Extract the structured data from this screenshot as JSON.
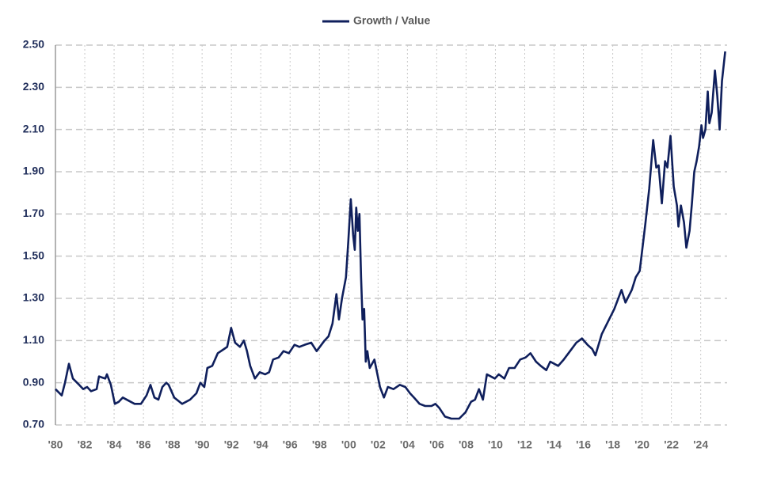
{
  "chart_data": {
    "type": "line",
    "legend": "top",
    "grid": true,
    "x": [
      1980.0,
      1980.43,
      1980.65,
      1980.92,
      1981.19,
      1981.62,
      1981.89,
      1982.16,
      1982.43,
      1982.81,
      1982.97,
      1983.4,
      1983.51,
      1983.78,
      1984.05,
      1984.32,
      1984.59,
      1985.13,
      1985.4,
      1985.83,
      1986.21,
      1986.48,
      1986.75,
      1987.02,
      1987.29,
      1987.56,
      1987.72,
      1988.1,
      1988.64,
      1989.18,
      1989.61,
      1989.88,
      1990.15,
      1990.36,
      1990.69,
      1991.07,
      1991.5,
      1991.71,
      1991.98,
      1992.25,
      1992.58,
      1992.85,
      1993.06,
      1993.28,
      1993.6,
      1993.93,
      1994.3,
      1994.57,
      1994.84,
      1995.22,
      1995.55,
      1995.92,
      1996.3,
      1996.63,
      1997.0,
      1997.44,
      1997.81,
      1998.35,
      1998.62,
      1998.89,
      1999.16,
      1999.33,
      1999.54,
      1999.81,
      1999.97,
      2000.14,
      2000.3,
      2000.41,
      2000.51,
      2000.62,
      2000.73,
      2000.84,
      2000.94,
      2001.05,
      2001.16,
      2001.27,
      2001.43,
      2001.75,
      2002.13,
      2002.4,
      2002.67,
      2003.05,
      2003.48,
      2003.86,
      2004.18,
      2004.45,
      2004.83,
      2005.21,
      2005.64,
      2005.91,
      2006.18,
      2006.56,
      2006.99,
      2007.53,
      2007.96,
      2008.34,
      2008.61,
      2008.88,
      2009.15,
      2009.42,
      2009.69,
      2009.96,
      2010.23,
      2010.61,
      2010.93,
      2011.31,
      2011.69,
      2012.06,
      2012.39,
      2012.77,
      2013.09,
      2013.47,
      2013.74,
      2014.28,
      2014.66,
      2015.09,
      2015.52,
      2015.9,
      2016.28,
      2016.6,
      2016.82,
      2017.25,
      2017.68,
      2018.11,
      2018.6,
      2018.87,
      2019.3,
      2019.57,
      2019.84,
      2020.22,
      2020.49,
      2020.76,
      2020.97,
      2021.13,
      2021.35,
      2021.57,
      2021.73,
      2021.94,
      2022.16,
      2022.38,
      2022.48,
      2022.65,
      2022.86,
      2023.02,
      2023.24,
      2023.4,
      2023.56,
      2023.72,
      2023.89,
      2024.05,
      2024.16,
      2024.32,
      2024.48,
      2024.59,
      2024.75,
      2024.97,
      2025.13,
      2025.29,
      2025.45,
      2025.67
    ],
    "series": [
      {
        "name": "Growth / Value",
        "color": "#0f1f5c",
        "values": [
          0.87,
          0.84,
          0.9,
          0.99,
          0.92,
          0.89,
          0.87,
          0.88,
          0.86,
          0.87,
          0.93,
          0.92,
          0.94,
          0.89,
          0.8,
          0.81,
          0.83,
          0.81,
          0.8,
          0.8,
          0.84,
          0.89,
          0.83,
          0.82,
          0.88,
          0.9,
          0.89,
          0.83,
          0.8,
          0.82,
          0.85,
          0.9,
          0.88,
          0.97,
          0.98,
          1.04,
          1.06,
          1.07,
          1.16,
          1.09,
          1.07,
          1.1,
          1.05,
          0.98,
          0.92,
          0.95,
          0.94,
          0.95,
          1.01,
          1.02,
          1.05,
          1.04,
          1.08,
          1.07,
          1.08,
          1.09,
          1.05,
          1.1,
          1.12,
          1.18,
          1.32,
          1.2,
          1.3,
          1.4,
          1.57,
          1.77,
          1.6,
          1.53,
          1.73,
          1.62,
          1.7,
          1.4,
          1.2,
          1.25,
          1.0,
          1.05,
          0.97,
          1.01,
          0.88,
          0.83,
          0.88,
          0.87,
          0.89,
          0.88,
          0.85,
          0.83,
          0.8,
          0.79,
          0.79,
          0.8,
          0.78,
          0.74,
          0.73,
          0.73,
          0.76,
          0.81,
          0.82,
          0.87,
          0.82,
          0.94,
          0.93,
          0.92,
          0.94,
          0.92,
          0.97,
          0.97,
          1.01,
          1.02,
          1.04,
          1.0,
          0.98,
          0.96,
          1.0,
          0.98,
          1.01,
          1.05,
          1.09,
          1.11,
          1.08,
          1.06,
          1.03,
          1.13,
          1.19,
          1.25,
          1.34,
          1.28,
          1.34,
          1.4,
          1.43,
          1.65,
          1.82,
          2.05,
          1.92,
          1.93,
          1.75,
          1.95,
          1.92,
          2.07,
          1.83,
          1.74,
          1.64,
          1.74,
          1.66,
          1.54,
          1.62,
          1.75,
          1.9,
          1.95,
          2.02,
          2.12,
          2.06,
          2.1,
          2.28,
          2.13,
          2.18,
          2.38,
          2.26,
          2.1,
          2.33,
          2.47
        ]
      }
    ],
    "xlim": [
      1980,
      2025.8
    ],
    "xticks": [
      {
        "value": 1980,
        "label": "'80"
      },
      {
        "value": 1982,
        "label": "'82"
      },
      {
        "value": 1984,
        "label": "'84"
      },
      {
        "value": 1986,
        "label": "'86"
      },
      {
        "value": 1988,
        "label": "'88"
      },
      {
        "value": 1990,
        "label": "'90"
      },
      {
        "value": 1992,
        "label": "'92"
      },
      {
        "value": 1994,
        "label": "'94"
      },
      {
        "value": 1996,
        "label": "'96"
      },
      {
        "value": 1998,
        "label": "'98"
      },
      {
        "value": 2000,
        "label": "'00"
      },
      {
        "value": 2002,
        "label": "'02"
      },
      {
        "value": 2004,
        "label": "'04"
      },
      {
        "value": 2006,
        "label": "'06"
      },
      {
        "value": 2008,
        "label": "'08"
      },
      {
        "value": 2010,
        "label": "'10"
      },
      {
        "value": 2012,
        "label": "'12"
      },
      {
        "value": 2014,
        "label": "'14"
      },
      {
        "value": 2016,
        "label": "'16"
      },
      {
        "value": 2018,
        "label": "'18"
      },
      {
        "value": 2020,
        "label": "'20"
      },
      {
        "value": 2022,
        "label": "'22"
      },
      {
        "value": 2024,
        "label": "'24"
      }
    ],
    "ylim": [
      0.7,
      2.5
    ],
    "yticks": [
      {
        "value": 0.7,
        "label": "0.70"
      },
      {
        "value": 0.9,
        "label": "0.90"
      },
      {
        "value": 1.1,
        "label": "1.10"
      },
      {
        "value": 1.3,
        "label": "1.30"
      },
      {
        "value": 1.5,
        "label": "1.50"
      },
      {
        "value": 1.7,
        "label": "1.70"
      },
      {
        "value": 1.9,
        "label": "1.90"
      },
      {
        "value": 2.1,
        "label": "2.10"
      },
      {
        "value": 2.3,
        "label": "2.30"
      },
      {
        "value": 2.5,
        "label": "2.50"
      }
    ]
  }
}
